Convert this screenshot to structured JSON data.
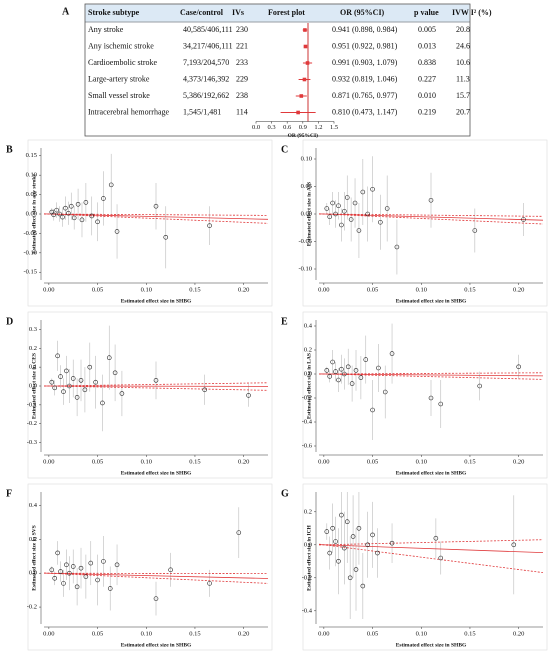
{
  "chart_data": [
    {
      "type": "forest",
      "panel": "A",
      "columns": [
        "Stroke subtype",
        "Case/control",
        "IVs",
        "Forest plot",
        "OR (95%CI)",
        "p value",
        "IVW I² (%)"
      ],
      "categories": [
        "Any stroke",
        "Any ischemic stroke",
        "Cardioembolic stroke",
        "Large-artery stroke",
        "Small vessel stroke",
        "Intracerebral hemorrhage"
      ],
      "case_control": [
        "40,585/406,111",
        "34,217/406,111",
        "7,193/204,570",
        "4,373/146,392",
        "5,386/192,662",
        "1,545/1,481"
      ],
      "ivs": [
        230,
        221,
        233,
        229,
        238,
        114
      ],
      "values": [
        0.941,
        0.951,
        0.991,
        0.932,
        0.871,
        0.81
      ],
      "ci_low": [
        0.898,
        0.922,
        0.903,
        0.819,
        0.765,
        0.473
      ],
      "ci_high": [
        0.984,
        0.981,
        1.079,
        1.046,
        0.977,
        1.147
      ],
      "value_labels": [
        "0.941 (0.898, 0.984)",
        "0.951 (0.922, 0.981)",
        "0.991 (0.903, 1.079)",
        "0.932 (0.819, 1.046)",
        "0.871 (0.765, 0.977)",
        "0.810 (0.473, 1.147)"
      ],
      "p_values": [
        "0.005",
        "0.013",
        "0.838",
        "0.227",
        "0.010",
        "0.219"
      ],
      "i2": [
        20.8,
        24.6,
        10.6,
        11.3,
        15.7,
        20.7
      ],
      "xlim": [
        0,
        1.5
      ],
      "xticks": [
        {
          "value": 0,
          "label": "0.0"
        },
        0.3,
        0.6,
        0.9,
        1.2,
        1.5
      ],
      "reference_line": 1,
      "xlabel": "OR (95%CI)",
      "color": "#e0393b"
    },
    {
      "type": "scatter",
      "panel": "B",
      "xlabel": "Estimated effect size in SHBG",
      "ylabel": "Estimated effect size in any stroke",
      "xlim": [
        -0.005,
        0.225
      ],
      "ylim": [
        -0.17,
        0.17
      ],
      "xticks": [
        {
          "value": 0,
          "label": "0.00"
        },
        0.05,
        {
          "value": 0.1,
          "label": "0.10"
        },
        0.15,
        {
          "value": 0.2,
          "label": "0.20"
        }
      ],
      "yticks": [
        -0.15,
        {
          "value": -0.1,
          "label": "-0.10"
        },
        -0.05,
        {
          "value": 0,
          "label": "0.00"
        },
        0.05,
        {
          "value": 0.1,
          "label": "0.10"
        },
        0.15
      ],
      "x": [
        0.003,
        0.005,
        0.008,
        0.011,
        0.014,
        0.017,
        0.02,
        0.023,
        0.026,
        0.03,
        0.034,
        0.038,
        0.044,
        0.05,
        0.056,
        0.064,
        0.07,
        0.11,
        0.12,
        0.165
      ],
      "y": [
        0.005,
        -0.002,
        0.01,
        0,
        -0.008,
        0.015,
        0.002,
        0.02,
        -0.01,
        0.025,
        -0.015,
        0.03,
        -0.005,
        -0.02,
        0.04,
        0.075,
        -0.045,
        0.02,
        -0.06,
        -0.03
      ],
      "err": [
        0.01,
        0.015,
        0.02,
        0.02,
        0.025,
        0.03,
        0.03,
        0.035,
        0.03,
        0.04,
        0.045,
        0.05,
        0.05,
        0.05,
        0.07,
        0.08,
        0.07,
        0.06,
        0.08,
        0.05
      ],
      "fit_slope": -0.061,
      "fit_slope_ci": [
        -0.107,
        -0.016
      ]
    },
    {
      "type": "scatter",
      "panel": "C",
      "xlabel": "Estimated effect size in SHBG",
      "ylabel": "Estimated effect size in AIS",
      "xlim": [
        -0.005,
        0.225
      ],
      "ylim": [
        -0.12,
        0.12
      ],
      "xticks": [
        {
          "value": 0,
          "label": "0.00"
        },
        0.05,
        {
          "value": 0.1,
          "label": "0.10"
        },
        0.15,
        {
          "value": 0.2,
          "label": "0.20"
        }
      ],
      "yticks": [
        {
          "value": -0.1,
          "label": "-0.10"
        },
        -0.05,
        {
          "value": 0,
          "label": "0.00"
        },
        0.05,
        {
          "value": 0.1,
          "label": "0.10"
        }
      ],
      "x": [
        0.003,
        0.006,
        0.009,
        0.012,
        0.015,
        0.018,
        0.021,
        0.024,
        0.028,
        0.032,
        0.036,
        0.04,
        0.045,
        0.05,
        0.058,
        0.065,
        0.075,
        0.11,
        0.155,
        0.205
      ],
      "y": [
        0.01,
        -0.005,
        0.02,
        0,
        0.015,
        -0.02,
        0.005,
        0.03,
        -0.01,
        0.02,
        -0.03,
        0.04,
        0,
        0.045,
        -0.015,
        0.01,
        -0.06,
        0.025,
        -0.03,
        -0.01
      ],
      "err": [
        0.01,
        0.015,
        0.02,
        0.025,
        0.025,
        0.03,
        0.035,
        0.04,
        0.04,
        0.045,
        0.05,
        0.06,
        0.05,
        0.06,
        0.05,
        0.06,
        0.05,
        0.05,
        0.04,
        0.03
      ],
      "fit_slope": -0.05,
      "fit_slope_ci": [
        -0.081,
        -0.019
      ]
    },
    {
      "type": "scatter",
      "panel": "D",
      "xlabel": "Estimated effect size in SHBG",
      "ylabel": "Estimated effect size in CES",
      "xlim": [
        -0.005,
        0.225
      ],
      "ylim": [
        -0.35,
        0.35
      ],
      "xticks": [
        {
          "value": 0,
          "label": "0.00"
        },
        0.05,
        {
          "value": 0.1,
          "label": "0.10"
        },
        0.15,
        {
          "value": 0.2,
          "label": "0.20"
        }
      ],
      "yticks": [
        -0.3,
        -0.2,
        -0.1,
        {
          "value": 0,
          "label": "0.0"
        },
        0.1,
        0.2,
        0.3
      ],
      "x": [
        0.003,
        0.006,
        0.009,
        0.012,
        0.015,
        0.018,
        0.021,
        0.025,
        0.029,
        0.033,
        0.037,
        0.042,
        0.048,
        0.055,
        0.062,
        0.068,
        0.075,
        0.11,
        0.16,
        0.205
      ],
      "y": [
        0.02,
        -0.01,
        0.16,
        0.05,
        -0.03,
        0.08,
        0,
        0.04,
        -0.06,
        0.03,
        -0.02,
        0.1,
        0.02,
        -0.09,
        0.15,
        0.07,
        -0.04,
        0.03,
        -0.02,
        -0.05
      ],
      "err": [
        0.02,
        0.04,
        0.08,
        0.06,
        0.07,
        0.08,
        0.09,
        0.1,
        0.1,
        0.11,
        0.12,
        0.13,
        0.14,
        0.15,
        0.17,
        0.15,
        0.12,
        0.1,
        0.08,
        0.06
      ],
      "fit_slope": -0.009,
      "fit_slope_ci": [
        -0.102,
        0.076
      ]
    },
    {
      "type": "scatter",
      "panel": "E",
      "xlabel": "Estimated effect size in SHBG",
      "ylabel": "Estimated effect size in LAS",
      "xlim": [
        -0.005,
        0.225
      ],
      "ylim": [
        -0.65,
        0.45
      ],
      "xticks": [
        {
          "value": 0,
          "label": "0.00"
        },
        0.05,
        {
          "value": 0.1,
          "label": "0.10"
        },
        0.15,
        {
          "value": 0.2,
          "label": "0.20"
        }
      ],
      "yticks": [
        -0.6,
        -0.4,
        -0.2,
        {
          "value": 0,
          "label": "0.0"
        },
        0.2,
        0.4
      ],
      "x": [
        0.003,
        0.006,
        0.009,
        0.012,
        0.015,
        0.018,
        0.021,
        0.025,
        0.029,
        0.033,
        0.038,
        0.043,
        0.05,
        0.056,
        0.063,
        0.07,
        0.11,
        0.12,
        0.16,
        0.2
      ],
      "y": [
        0.03,
        -0.02,
        0.1,
        0.02,
        -0.05,
        0.04,
        0,
        0.06,
        -0.08,
        0.03,
        -0.03,
        0.12,
        -0.3,
        0.05,
        -0.15,
        0.17,
        -0.2,
        -0.25,
        -0.1,
        0.06
      ],
      "err": [
        0.03,
        0.05,
        0.1,
        0.08,
        0.1,
        0.12,
        0.13,
        0.15,
        0.15,
        0.17,
        0.18,
        0.2,
        0.25,
        0.2,
        0.22,
        0.25,
        0.15,
        0.2,
        0.12,
        0.1
      ],
      "fit_slope": -0.07,
      "fit_slope_ci": [
        -0.2,
        0.045
      ]
    },
    {
      "type": "scatter",
      "panel": "F",
      "xlabel": "Estimated effect size in SHBG",
      "ylabel": "Estimated effect size in SVS",
      "xlim": [
        -0.005,
        0.225
      ],
      "ylim": [
        -0.3,
        0.48
      ],
      "xticks": [
        {
          "value": 0,
          "label": "0.00"
        },
        0.05,
        {
          "value": 0.1,
          "label": "0.10"
        },
        0.15,
        {
          "value": 0.2,
          "label": "0.20"
        }
      ],
      "yticks": [
        -0.2,
        {
          "value": 0,
          "label": "0.0"
        },
        0.2,
        0.4
      ],
      "x": [
        0.003,
        0.006,
        0.009,
        0.012,
        0.015,
        0.018,
        0.021,
        0.025,
        0.029,
        0.033,
        0.038,
        0.043,
        0.05,
        0.056,
        0.063,
        0.07,
        0.11,
        0.125,
        0.165,
        0.195
      ],
      "y": [
        0.02,
        -0.03,
        0.12,
        0.01,
        -0.06,
        0.05,
        0,
        0.04,
        -0.08,
        0.03,
        -0.02,
        0.06,
        -0.04,
        0.07,
        -0.09,
        0.05,
        -0.15,
        0.02,
        -0.06,
        0.24
      ],
      "err": [
        0.02,
        0.04,
        0.07,
        0.06,
        0.08,
        0.09,
        0.1,
        0.1,
        0.11,
        0.12,
        0.13,
        0.13,
        0.15,
        0.15,
        0.13,
        0.12,
        0.1,
        0.1,
        0.08,
        0.15
      ],
      "fit_slope": -0.138,
      "fit_slope_ci": [
        -0.267,
        -0.011
      ]
    },
    {
      "type": "scatter",
      "panel": "G",
      "xlabel": "Estimated effect size in SHBG",
      "ylabel": "Estimated effect size in ICH",
      "xlim": [
        -0.005,
        0.225
      ],
      "ylim": [
        -0.48,
        0.32
      ],
      "xticks": [
        {
          "value": 0,
          "label": "0.00"
        },
        0.05,
        {
          "value": 0.1,
          "label": "0.10"
        },
        0.15,
        {
          "value": 0.2,
          "label": "0.20"
        }
      ],
      "yticks": [
        -0.4,
        -0.2,
        {
          "value": 0,
          "label": "0.0"
        },
        0.2
      ],
      "x": [
        0.003,
        0.006,
        0.009,
        0.012,
        0.015,
        0.018,
        0.021,
        0.024,
        0.027,
        0.03,
        0.033,
        0.036,
        0.04,
        0.045,
        0.05,
        0.055,
        0.07,
        0.115,
        0.12,
        0.195
      ],
      "y": [
        0.08,
        -0.05,
        0.1,
        0.02,
        -0.1,
        0.18,
        -0.02,
        0.14,
        -0.2,
        0.05,
        -0.15,
        0.1,
        -0.25,
        0,
        0.06,
        -0.05,
        0.01,
        0.04,
        -0.08,
        0
      ],
      "err": [
        0.05,
        0.1,
        0.15,
        0.15,
        0.2,
        0.2,
        0.22,
        0.25,
        0.25,
        0.25,
        0.25,
        0.22,
        0.2,
        0.2,
        0.2,
        0.15,
        0.12,
        0.12,
        0.1,
        0.3
      ],
      "fit_slope": -0.211,
      "fit_slope_ci": [
        -0.749,
        0.137
      ]
    }
  ]
}
